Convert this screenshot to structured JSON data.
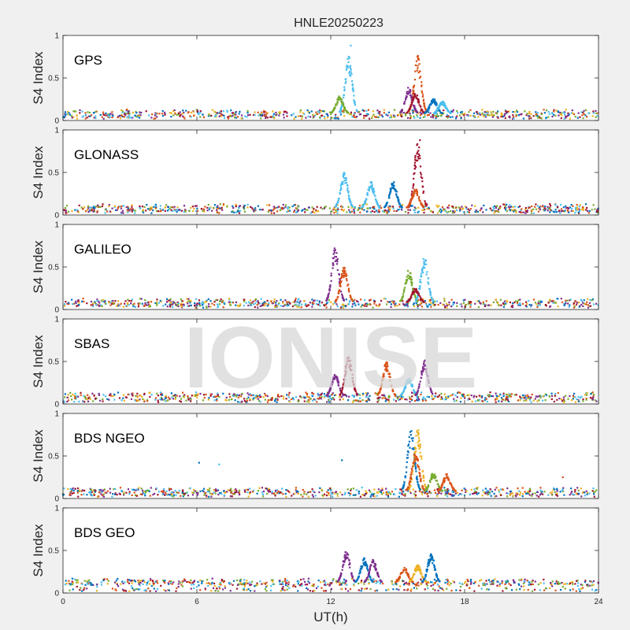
{
  "title": "HNLE20250223",
  "watermark": "IONISE",
  "xlabel": "UT(h)",
  "ylabel": "S4 Index",
  "xticks": [
    "0",
    "6",
    "12",
    "18",
    "24"
  ],
  "yticks": [
    "0",
    "0.5",
    "1"
  ],
  "colors": [
    "#0072BD",
    "#D95319",
    "#EDB120",
    "#7E2F8E",
    "#77AC30",
    "#4DBEEE",
    "#A2142F"
  ],
  "chart_data": [
    {
      "type": "scatter",
      "panel": "GPS",
      "xlim": [
        0,
        24
      ],
      "ylim": [
        0,
        1
      ],
      "xlabel": "UT(h)",
      "ylabel": "S4 Index",
      "baseline": 0.08,
      "events": [
        {
          "x": 12.8,
          "peak": 0.72,
          "color": "#4DBEEE",
          "max": 0.88
        },
        {
          "x": 12.4,
          "peak": 0.28,
          "color": "#77AC30"
        },
        {
          "x": 15.9,
          "peak": 0.73,
          "color": "#D95319"
        },
        {
          "x": 15.5,
          "peak": 0.38,
          "color": "#7E2F8E"
        },
        {
          "x": 15.8,
          "peak": 0.32,
          "color": "#A2142F"
        },
        {
          "x": 16.6,
          "peak": 0.25,
          "color": "#0072BD"
        },
        {
          "x": 17.0,
          "peak": 0.22,
          "color": "#4DBEEE"
        }
      ]
    },
    {
      "type": "scatter",
      "panel": "GLONASS",
      "xlim": [
        0,
        24
      ],
      "ylim": [
        0,
        1
      ],
      "xlabel": "UT(h)",
      "ylabel": "S4 Index",
      "baseline": 0.08,
      "events": [
        {
          "x": 12.6,
          "peak": 0.48,
          "color": "#4DBEEE"
        },
        {
          "x": 13.8,
          "peak": 0.38,
          "color": "#4DBEEE"
        },
        {
          "x": 14.8,
          "peak": 0.38,
          "color": "#0072BD"
        },
        {
          "x": 15.9,
          "peak": 0.82,
          "color": "#A2142F",
          "max": 0.88
        },
        {
          "x": 15.8,
          "peak": 0.3,
          "color": "#D95319"
        }
      ]
    },
    {
      "type": "scatter",
      "panel": "GALILEO",
      "xlim": [
        0,
        24
      ],
      "ylim": [
        0,
        1
      ],
      "xlabel": "UT(h)",
      "ylabel": "S4 Index",
      "baseline": 0.08,
      "events": [
        {
          "x": 12.2,
          "peak": 0.72,
          "color": "#7E2F8E"
        },
        {
          "x": 12.6,
          "peak": 0.48,
          "color": "#D95319"
        },
        {
          "x": 15.5,
          "peak": 0.45,
          "color": "#77AC30"
        },
        {
          "x": 16.2,
          "peak": 0.6,
          "color": "#4DBEEE"
        },
        {
          "x": 15.8,
          "peak": 0.25,
          "color": "#A2142F"
        }
      ]
    },
    {
      "type": "scatter",
      "panel": "SBAS",
      "xlim": [
        0,
        24
      ],
      "ylim": [
        0,
        1
      ],
      "xlabel": "UT(h)",
      "ylabel": "S4 Index",
      "baseline": 0.09,
      "events": [
        {
          "x": 12.2,
          "peak": 0.35,
          "color": "#7E2F8E"
        },
        {
          "x": 12.8,
          "peak": 0.55,
          "color": "#A2142F"
        },
        {
          "x": 14.5,
          "peak": 0.48,
          "color": "#D95319"
        },
        {
          "x": 15.5,
          "peak": 0.3,
          "color": "#4DBEEE"
        },
        {
          "x": 16.2,
          "peak": 0.5,
          "color": "#7E2F8E"
        }
      ]
    },
    {
      "type": "scatter",
      "panel": "BDS NGEO",
      "xlim": [
        0,
        24
      ],
      "ylim": [
        0,
        1
      ],
      "xlabel": "UT(h)",
      "ylabel": "S4 Index",
      "baseline": 0.08,
      "events": [
        {
          "x": 15.6,
          "peak": 0.8,
          "color": "#0072BD"
        },
        {
          "x": 15.9,
          "peak": 0.78,
          "color": "#EDB120"
        },
        {
          "x": 15.8,
          "peak": 0.55,
          "color": "#D95319"
        },
        {
          "x": 16.6,
          "peak": 0.3,
          "color": "#77AC30"
        },
        {
          "x": 17.2,
          "peak": 0.28,
          "color": "#D95319"
        },
        {
          "x": 12.5,
          "peak": 0.45,
          "color": "#0072BD",
          "single": true
        },
        {
          "x": 6.1,
          "peak": 0.42,
          "color": "#0072BD",
          "single": true
        },
        {
          "x": 7.0,
          "peak": 0.4,
          "color": "#4DBEEE",
          "single": true
        },
        {
          "x": 22.4,
          "peak": 0.25,
          "color": "#D95319",
          "single": true
        }
      ]
    },
    {
      "type": "scatter",
      "panel": "BDS GEO",
      "xlim": [
        0,
        24
      ],
      "ylim": [
        0,
        1
      ],
      "xlabel": "UT(h)",
      "ylabel": "S4 Index",
      "baseline": 0.12,
      "events": [
        {
          "x": 12.7,
          "peak": 0.48,
          "color": "#7E2F8E"
        },
        {
          "x": 13.5,
          "peak": 0.4,
          "color": "#0072BD"
        },
        {
          "x": 13.9,
          "peak": 0.38,
          "color": "#7E2F8E"
        },
        {
          "x": 15.3,
          "peak": 0.3,
          "color": "#D95319"
        },
        {
          "x": 15.9,
          "peak": 0.32,
          "color": "#EDB120"
        },
        {
          "x": 16.5,
          "peak": 0.45,
          "color": "#0072BD"
        }
      ]
    }
  ]
}
